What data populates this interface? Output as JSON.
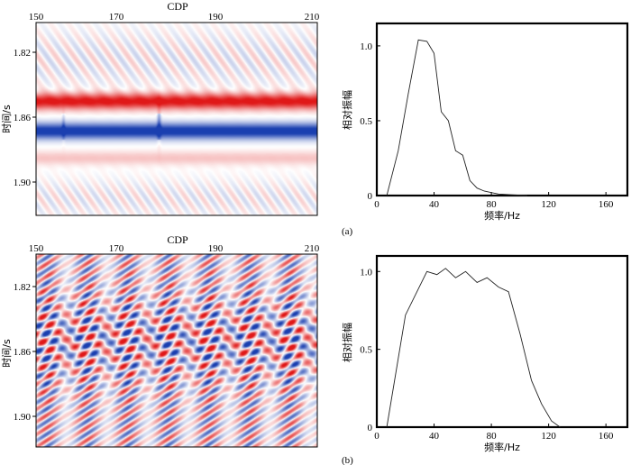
{
  "panels": [
    {
      "id": "a",
      "label": "(a)",
      "section": {
        "xlabel": "CDP",
        "x_ticks": [
          "150",
          "170",
          "190",
          "210"
        ],
        "x_tick_values": [
          150,
          170,
          190,
          210
        ],
        "xlim": [
          150,
          212
        ],
        "ylabel": "时间/s",
        "y_ticks": [
          "1.82",
          "1.86",
          "1.90"
        ],
        "y_tick_values": [
          1.82,
          1.86,
          1.9
        ],
        "ylim": [
          1.8,
          1.92
        ],
        "colors": {
          "positive": "#e01818",
          "negative": "#1a3fb0",
          "zero": "#ffffff"
        }
      },
      "chart_data": {
        "type": "line",
        "xlabel": "频率/Hz",
        "ylabel": "相对振幅",
        "x_ticks": [
          "0",
          "40",
          "80",
          "120",
          "160"
        ],
        "x_tick_values": [
          0,
          40,
          80,
          120,
          160
        ],
        "y_ticks": [
          "0",
          "0.5",
          "1.0"
        ],
        "y_tick_values": [
          0,
          0.5,
          1.0
        ],
        "xlim": [
          0,
          175
        ],
        "ylim": [
          0,
          1.15
        ],
        "x": [
          7,
          15,
          22,
          29,
          35,
          40,
          45,
          50,
          55,
          60,
          65,
          70,
          75,
          80,
          85,
          95,
          105
        ],
        "y": [
          0.0,
          0.3,
          0.68,
          1.04,
          1.03,
          0.95,
          0.56,
          0.5,
          0.3,
          0.27,
          0.1,
          0.05,
          0.03,
          0.02,
          0.01,
          0.005,
          0.0
        ]
      }
    },
    {
      "id": "b",
      "label": "(b)",
      "section": {
        "xlabel": "CDP",
        "x_ticks": [
          "150",
          "170",
          "190",
          "210"
        ],
        "x_tick_values": [
          150,
          170,
          190,
          210
        ],
        "xlim": [
          150,
          212
        ],
        "ylabel": "时间/s",
        "y_ticks": [
          "1.82",
          "1.86",
          "1.90"
        ],
        "y_tick_values": [
          1.82,
          1.86,
          1.9
        ],
        "ylim": [
          1.8,
          1.92
        ],
        "colors": {
          "positive": "#e01818",
          "negative": "#1a3fb0",
          "zero": "#ffffff"
        }
      },
      "chart_data": {
        "type": "line",
        "xlabel": "频率/Hz",
        "ylabel": "相对振幅",
        "x_ticks": [
          "0",
          "40",
          "80",
          "120",
          "160"
        ],
        "x_tick_values": [
          0,
          40,
          80,
          120,
          160
        ],
        "y_ticks": [
          "0",
          "0.5",
          "1.0"
        ],
        "y_tick_values": [
          0,
          0.5,
          1.0
        ],
        "xlim": [
          0,
          175
        ],
        "ylim": [
          0,
          1.1
        ],
        "x": [
          7,
          20,
          35,
          42,
          48,
          55,
          62,
          70,
          77,
          85,
          92,
          100,
          108,
          115,
          122,
          128
        ],
        "y": [
          0.0,
          0.72,
          1.0,
          0.98,
          1.02,
          0.96,
          1.0,
          0.93,
          0.96,
          0.9,
          0.87,
          0.6,
          0.3,
          0.15,
          0.04,
          0.0
        ]
      }
    }
  ]
}
